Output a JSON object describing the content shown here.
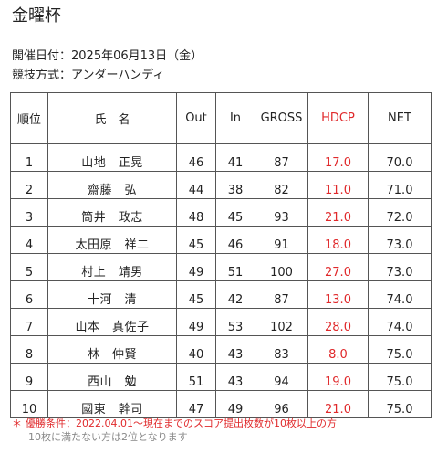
{
  "title": "金曜杯",
  "date_line": "開催日付：2025年06月13日（金）",
  "method_line": "競技方式：アンダーハンディ",
  "table": {
    "headers": {
      "rank": "順位",
      "name": "氏　名",
      "out": "Out",
      "in": "In",
      "gross": "GROSS",
      "hdcp": "HDCP",
      "net": "NET"
    },
    "rows": [
      {
        "rank": "1",
        "name": "山地　正晃",
        "out": "46",
        "in": "41",
        "gross": "87",
        "hdcp": "17.0",
        "net": "70.0"
      },
      {
        "rank": "2",
        "name": "齋藤　弘",
        "out": "44",
        "in": "38",
        "gross": "82",
        "hdcp": "11.0",
        "net": "71.0"
      },
      {
        "rank": "3",
        "name": "筒井　政志",
        "out": "48",
        "in": "45",
        "gross": "93",
        "hdcp": "21.0",
        "net": "72.0"
      },
      {
        "rank": "4",
        "name": "太田原　祥二",
        "out": "45",
        "in": "46",
        "gross": "91",
        "hdcp": "18.0",
        "net": "73.0"
      },
      {
        "rank": "5",
        "name": "村上　靖男",
        "out": "49",
        "in": "51",
        "gross": "100",
        "hdcp": "27.0",
        "net": "73.0"
      },
      {
        "rank": "6",
        "name": "十河　清",
        "out": "45",
        "in": "42",
        "gross": "87",
        "hdcp": "13.0",
        "net": "74.0"
      },
      {
        "rank": "7",
        "name": "山本　真佐子",
        "out": "49",
        "in": "53",
        "gross": "102",
        "hdcp": "28.0",
        "net": "74.0"
      },
      {
        "rank": "8",
        "name": "林　仲賢",
        "out": "40",
        "in": "43",
        "gross": "83",
        "hdcp": "8.0",
        "net": "75.0"
      },
      {
        "rank": "9",
        "name": "西山　勉",
        "out": "51",
        "in": "43",
        "gross": "94",
        "hdcp": "19.0",
        "net": "75.0"
      },
      {
        "rank": "10",
        "name": "國東　幹司",
        "out": "47",
        "in": "49",
        "gross": "96",
        "hdcp": "21.0",
        "net": "75.0"
      }
    ]
  },
  "notes": {
    "asterisk": "＊",
    "condition": "優勝条件：2022.04.01～現在までのスコア提出枚数が10枚以上の方",
    "sub": "10枚に満たない方は2位となります"
  },
  "colors": {
    "accent_red": "#e0292b",
    "note_gray": "#888888",
    "border": "#555555"
  }
}
